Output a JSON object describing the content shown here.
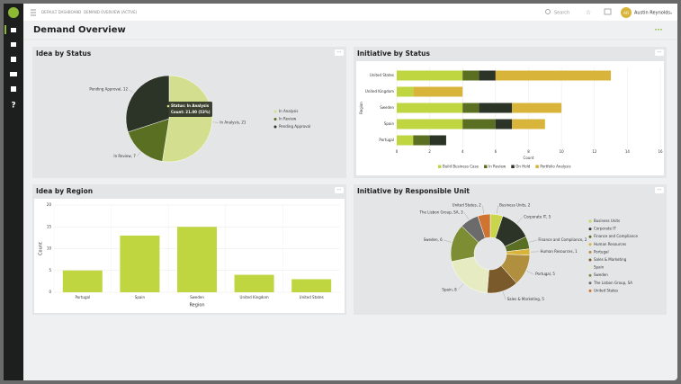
{
  "header": {
    "breadcrumb": [
      "DEFAULT DASHBOARD",
      "DEMAND OVERVIEW (ACTIVE)"
    ],
    "search": "Search",
    "user_initials": "AR",
    "user_name": "Austin Reynolds"
  },
  "page_title": "Demand Overview",
  "chart_data": [
    {
      "type": "pie",
      "title": "Idea by Status",
      "categories": [
        "In Analysis",
        "In Review",
        "Pending Approval"
      ],
      "values": [
        21,
        7,
        12
      ],
      "value_labels": [
        "In Analysis, 21",
        "In Review, 7",
        "Pending Approval, 12"
      ],
      "colors": [
        "#d3df8f",
        "#5b6f22",
        "#2c3327"
      ],
      "tooltip": [
        "Status: In Analysis",
        "Count: 21.00 (53%)"
      ],
      "legend": "right"
    },
    {
      "type": "hbar",
      "title": "Initiative by Status",
      "categories": [
        "United States",
        "United Kingdom",
        "Sweden",
        "Spain",
        "Portugal"
      ],
      "series": [
        {
          "name": "Build Business Case",
          "color": "#bfd641",
          "values": [
            4,
            1,
            4,
            4,
            1
          ]
        },
        {
          "name": "In Review",
          "color": "#5b6f22",
          "values": [
            1,
            0,
            1,
            2,
            1
          ]
        },
        {
          "name": "On Hold",
          "color": "#2c3327",
          "values": [
            1,
            0,
            2,
            1,
            1
          ]
        },
        {
          "name": "Portfolio Analysis",
          "color": "#d8b43a",
          "values": [
            7,
            3,
            3,
            2,
            0
          ]
        }
      ],
      "xlabel": "Count",
      "ylabel": "Region",
      "xlim": [
        0,
        16
      ],
      "xticks": [
        0,
        2,
        4,
        6,
        8,
        10,
        12,
        14,
        16
      ],
      "grid": true,
      "legend": "bottom"
    },
    {
      "type": "bar",
      "title": "Idea by Region",
      "categories": [
        "Portugal",
        "Spain",
        "Sweden",
        "United Kingdom",
        "United States"
      ],
      "values": [
        5,
        13,
        15,
        4,
        3
      ],
      "color": "#bfd641",
      "xlabel": "Region",
      "ylabel": "Count",
      "ylim": [
        0,
        20
      ],
      "yticks": [
        0,
        5,
        10,
        15,
        20
      ],
      "grid": true
    },
    {
      "type": "donut",
      "title": "Initiative by Responsible Unit",
      "categories": [
        "Business Units",
        "Corporate IT",
        "Finance and Compliance",
        "Human Resources",
        "Portugal",
        "Sales & Marketing",
        "Spain",
        "Sweden",
        "The Lisbon Group, SA",
        "United States"
      ],
      "values": [
        2,
        5,
        2,
        1,
        5,
        5,
        8,
        6,
        3,
        2
      ],
      "value_labels": [
        "Business Units, 2",
        "Corporate IT, 5",
        "Finance and Compliance, 2",
        "Human Resources, 1",
        "Portugal, 5",
        "Sales & Marketing, 5",
        "Spain, 8",
        "Sweden, 6",
        "The Lisbon Group, SA, 3",
        "United States, 2"
      ],
      "colors": [
        "#c9d54b",
        "#2c3327",
        "#5b6f22",
        "#d8b43a",
        "#b08f3e",
        "#7a5a2b",
        "#e6ebc2",
        "#7d8d33",
        "#6b6b6b",
        "#d07232"
      ],
      "legend": "right"
    }
  ]
}
